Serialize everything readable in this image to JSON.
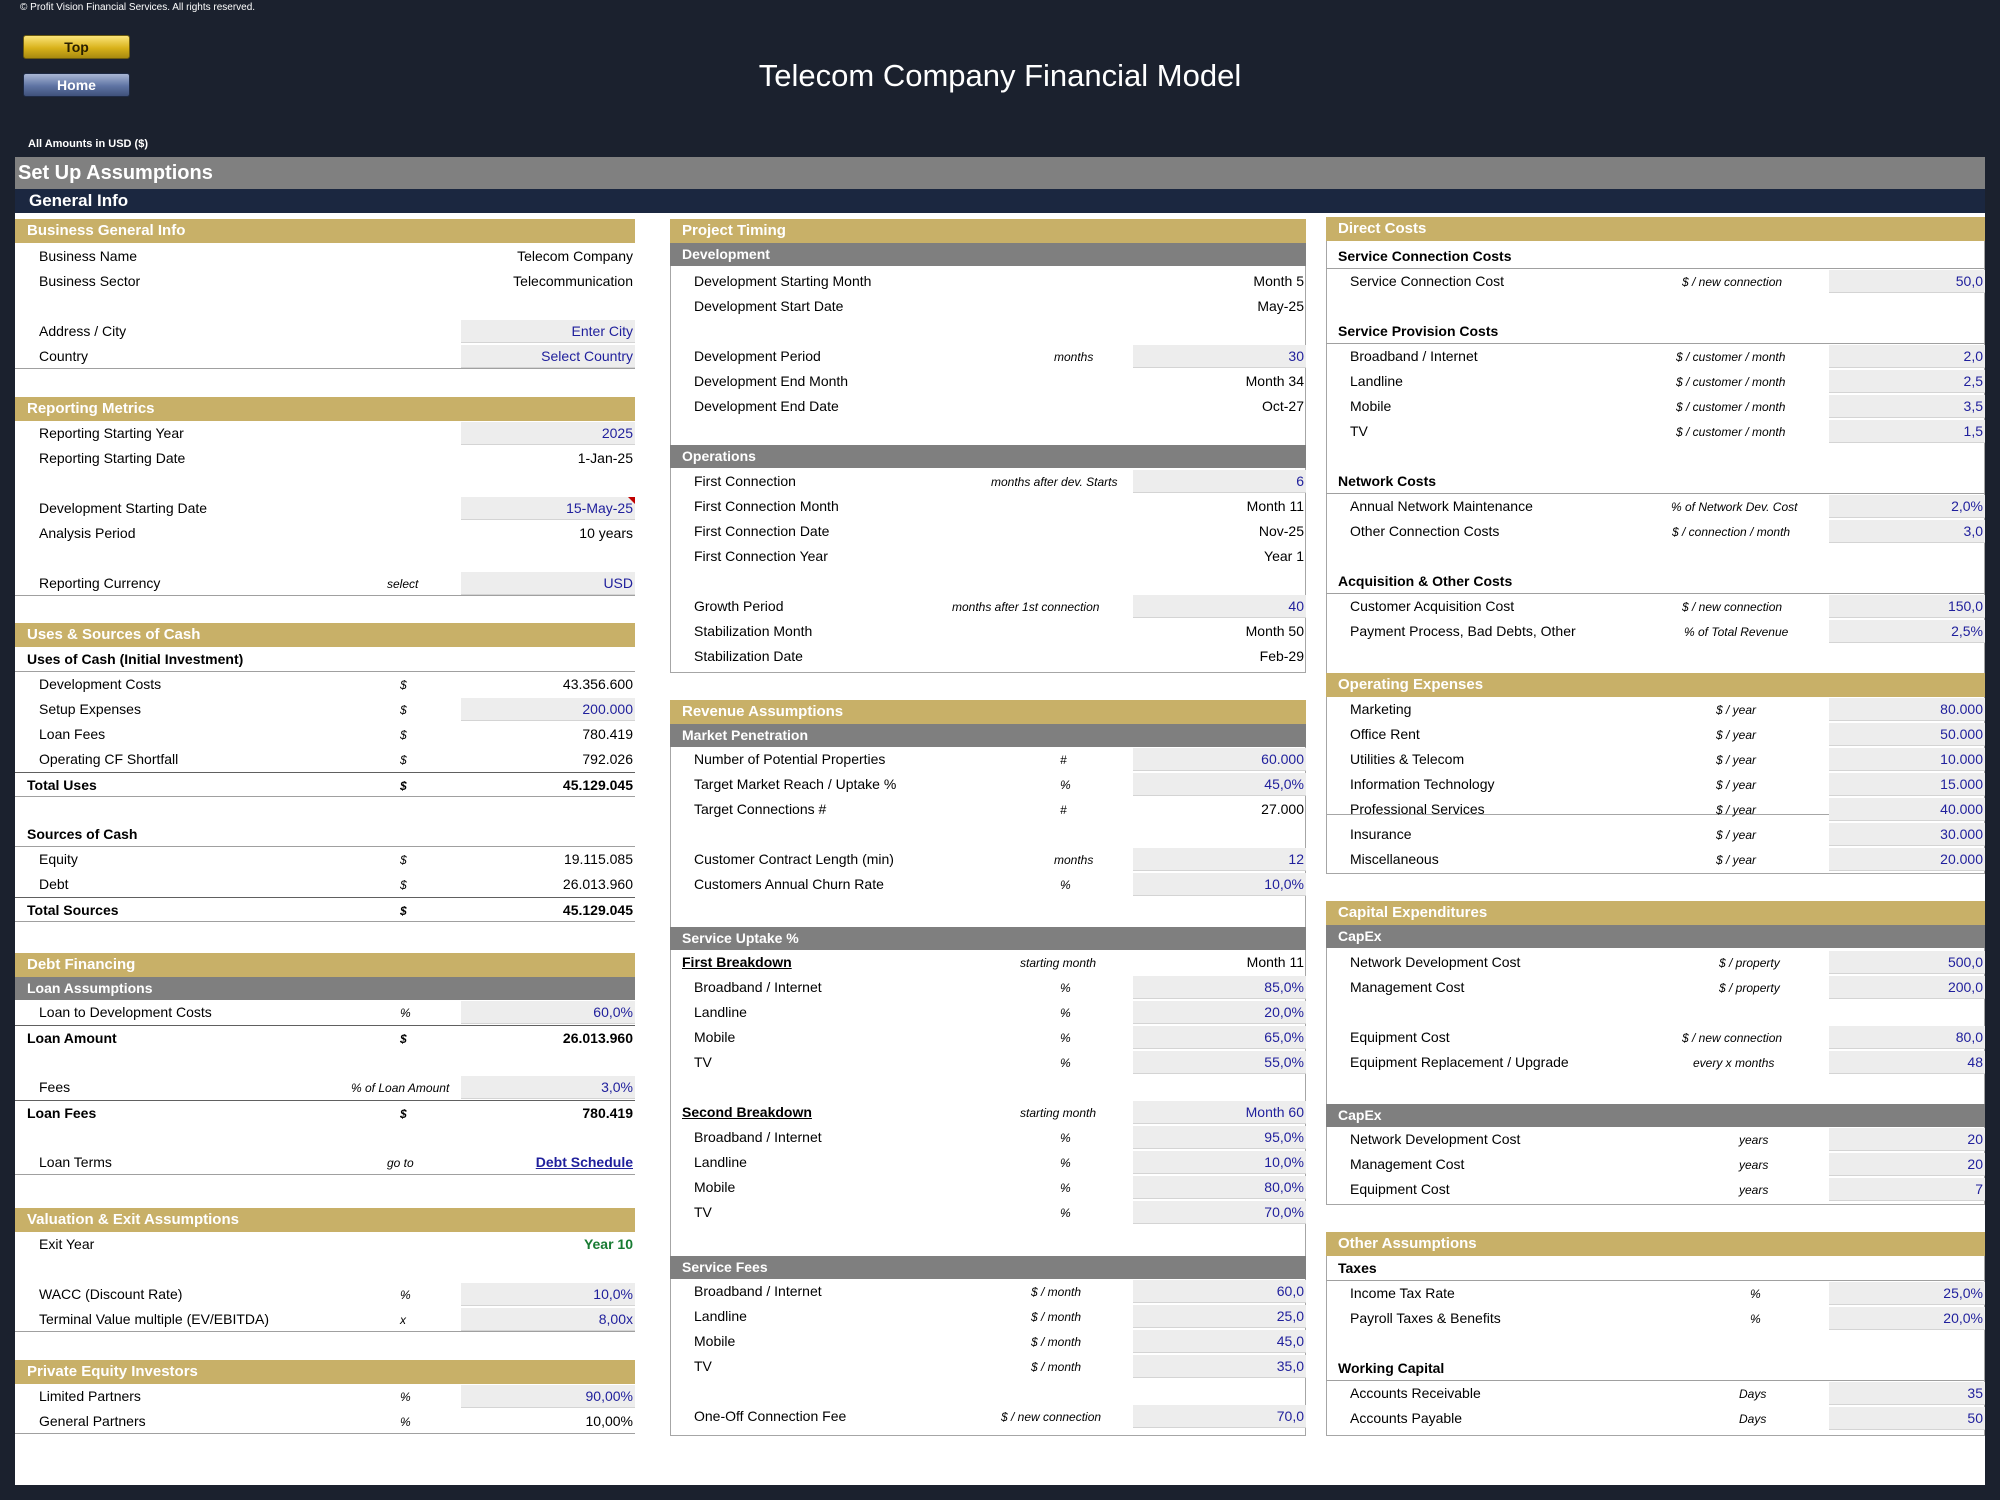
{
  "copyright": "© Profit Vision Financial Services. All rights reserved.",
  "nav": {
    "top": "Top",
    "home": "Home"
  },
  "title": "Telecom Company Financial Model",
  "amounts_label": "All Amounts in  USD ($)",
  "setup_title": "Set Up Assumptions",
  "general_title": "General Info",
  "col1": {
    "business": {
      "title": "Business General Info",
      "name_label": "Business Name",
      "name_value": "Telecom Company",
      "sector_label": "Business Sector",
      "sector_value": "Telecommunication",
      "city_label": "Address / City",
      "city_value": "Enter City",
      "country_label": "Country",
      "country_value": "Select Country"
    },
    "reporting": {
      "title": "Reporting Metrics",
      "year_label": "Reporting Starting Year",
      "year_value": "2025",
      "date_label": "Reporting Starting Date",
      "date_value": "1-Jan-25",
      "dev_label": "Development Starting Date",
      "dev_value": "15-May-25",
      "period_label": "Analysis Period",
      "period_value": "10 years",
      "currency_label": "Reporting Currency",
      "currency_unit": "select",
      "currency_value": "USD"
    },
    "cash": {
      "title": "Uses & Sources of Cash",
      "uses_title": "Uses of Cash (Initial Investment)",
      "uses": [
        {
          "label": "Development Costs",
          "unit": "$",
          "value": "43.356.600"
        },
        {
          "label": "Setup Expenses",
          "unit": "$",
          "value": "200.000"
        },
        {
          "label": "Loan Fees",
          "unit": "$",
          "value": "780.419"
        },
        {
          "label": "Operating CF Shortfall",
          "unit": "$",
          "value": "792.026"
        }
      ],
      "total_uses_label": "Total Uses",
      "total_uses_unit": "$",
      "total_uses_value": "45.129.045",
      "sources_title": "Sources of Cash",
      "sources": [
        {
          "label": "Equity",
          "unit": "$",
          "value": "19.115.085"
        },
        {
          "label": "Debt",
          "unit": "$",
          "value": "26.013.960"
        }
      ],
      "total_sources_label": "Total Sources",
      "total_sources_unit": "$",
      "total_sources_value": "45.129.045"
    },
    "debt": {
      "title": "Debt Financing",
      "loan_title": "Loan Assumptions",
      "ltd_label": "Loan to Development Costs",
      "ltd_unit": "%",
      "ltd_value": "60,0%",
      "amount_label": "Loan Amount",
      "amount_unit": "$",
      "amount_value": "26.013.960",
      "fees_label": "Fees",
      "fees_unit": "% of Loan Amount",
      "fees_value": "3,0%",
      "loanfees_label": "Loan Fees",
      "loanfees_unit": "$",
      "loanfees_value": "780.419",
      "terms_label": "Loan Terms",
      "terms_unit": "go to",
      "terms_link": "Debt Schedule"
    },
    "valuation": {
      "title": "Valuation & Exit Assumptions",
      "exit_label": "Exit Year",
      "exit_value": "Year 10",
      "wacc_label": "WACC (Discount Rate)",
      "wacc_unit": "%",
      "wacc_value": "10,0%",
      "tv_label": "Terminal Value multiple (EV/EBITDA)",
      "tv_unit": "x",
      "tv_value": "8,00x"
    },
    "pe": {
      "title": "Private Equity Investors",
      "lp_label": "Limited Partners",
      "lp_unit": "%",
      "lp_value": "90,00%",
      "gp_label": "General Partners",
      "gp_unit": "%",
      "gp_value": "10,00%"
    }
  },
  "col2": {
    "timing": {
      "title": "Project Timing",
      "dev_title": "Development",
      "dev_start_month_label": "Development Starting Month",
      "dev_start_month_value": "Month 5",
      "dev_start_date_label": "Development Start Date",
      "dev_start_date_value": "May-25",
      "dev_period_label": "Development Period",
      "dev_period_unit": "months",
      "dev_period_value": "30",
      "dev_end_month_label": "Development End Month",
      "dev_end_month_value": "Month 34",
      "dev_end_date_label": "Development End Date",
      "dev_end_date_value": "Oct-27",
      "ops_title": "Operations",
      "first_conn_label": "First Connection",
      "first_conn_unit": "months after dev. Starts",
      "first_conn_value": "6",
      "first_conn_month_label": "First Connection Month",
      "first_conn_month_value": "Month 11",
      "first_conn_date_label": "First Connection Date",
      "first_conn_date_value": "Nov-25",
      "first_conn_year_label": "First Connection Year",
      "first_conn_year_value": "Year 1",
      "growth_label": "Growth Period",
      "growth_unit": "months after 1st connection",
      "growth_value": "40",
      "stab_month_label": "Stabilization Month",
      "stab_month_value": "Month 50",
      "stab_date_label": "Stabilization Date",
      "stab_date_value": "Feb-29"
    },
    "revenue": {
      "title": "Revenue Assumptions",
      "mkt_title": "Market Penetration",
      "props_label": "Number of Potential Properties",
      "props_unit": "#",
      "props_value": "60.000",
      "reach_label": "Target Market Reach / Uptake %",
      "reach_unit": "%",
      "reach_value": "45,0%",
      "target_label": "Target Connections #",
      "target_unit": "#",
      "target_value": "27.000",
      "contract_label": "Customer Contract Length (min)",
      "contract_unit": "months",
      "contract_value": "12",
      "churn_label": "Customers Annual Churn Rate",
      "churn_unit": "%",
      "churn_value": "10,0%",
      "uptake_title": "Service Uptake %",
      "first_title": "First Breakdown",
      "first_unit": "starting month",
      "first_value": "Month 11",
      "first_rows": [
        {
          "label": "Broadband / Internet",
          "unit": "%",
          "value": "85,0%"
        },
        {
          "label": "Landline",
          "unit": "%",
          "value": "20,0%"
        },
        {
          "label": "Mobile",
          "unit": "%",
          "value": "65,0%"
        },
        {
          "label": "TV",
          "unit": "%",
          "value": "55,0%"
        }
      ],
      "second_title": "Second Breakdown",
      "second_unit": "starting month",
      "second_value": "Month 60",
      "second_rows": [
        {
          "label": "Broadband / Internet",
          "unit": "%",
          "value": "95,0%"
        },
        {
          "label": "Landline",
          "unit": "%",
          "value": "10,0%"
        },
        {
          "label": "Mobile",
          "unit": "%",
          "value": "80,0%"
        },
        {
          "label": "TV",
          "unit": "%",
          "value": "70,0%"
        }
      ],
      "fees_title": "Service Fees",
      "fees_rows": [
        {
          "label": "Broadband / Internet",
          "unit": "$ / month",
          "value": "60,0"
        },
        {
          "label": "Landline",
          "unit": "$ / month",
          "value": "25,0"
        },
        {
          "label": "Mobile",
          "unit": "$ / month",
          "value": "45,0"
        },
        {
          "label": "TV",
          "unit": "$ / month",
          "value": "35,0"
        }
      ],
      "oneoff_label": "One-Off Connection Fee",
      "oneoff_unit": "$ / new connection",
      "oneoff_value": "70,0"
    }
  },
  "col3": {
    "direct": {
      "title": "Direct Costs",
      "conn_title": "Service Connection Costs",
      "conn_label": "Service Connection Cost",
      "conn_unit": "$ / new connection",
      "conn_value": "50,0",
      "prov_title": "Service Provision Costs",
      "prov_rows": [
        {
          "label": "Broadband / Internet",
          "unit": "$ / customer / month",
          "value": "2,0"
        },
        {
          "label": "Landline",
          "unit": "$ / customer / month",
          "value": "2,5"
        },
        {
          "label": "Mobile",
          "unit": "$ / customer / month",
          "value": "3,5"
        },
        {
          "label": "TV",
          "unit": "$ / customer / month",
          "value": "1,5"
        }
      ],
      "net_title": "Network Costs",
      "net_rows": [
        {
          "label": "Annual Network Maintenance",
          "unit": "% of Network Dev. Cost",
          "value": "2,0%"
        },
        {
          "label": "Other Connection Costs",
          "unit": "$ / connection / month",
          "value": "3,0"
        }
      ],
      "acq_title": "Acquisition & Other Costs",
      "acq_rows": [
        {
          "label": "Customer Acquisition Cost",
          "unit": "$ / new connection",
          "value": "150,0"
        },
        {
          "label": "Payment Process, Bad Debts, Other",
          "unit": "% of Total Revenue",
          "value": "2,5%"
        }
      ]
    },
    "opex": {
      "title": "Operating Expenses",
      "rows": [
        {
          "label": "Marketing",
          "unit": "$ / year",
          "value": "80.000"
        },
        {
          "label": "Office Rent",
          "unit": "$ / year",
          "value": "50.000"
        },
        {
          "label": "Utilities & Telecom",
          "unit": "$ / year",
          "value": "10.000"
        },
        {
          "label": "Information Technology",
          "unit": "$ / year",
          "value": "15.000"
        },
        {
          "label": "Professional Services",
          "unit": "$ / year",
          "value": "40.000"
        },
        {
          "label": "Insurance",
          "unit": "$ / year",
          "value": "30.000"
        },
        {
          "label": "Miscellaneous",
          "unit": "$ / year",
          "value": "20.000"
        }
      ]
    },
    "capex": {
      "title": "Capital Expenditures",
      "capex1_title": "CapEx",
      "capex1_rows": [
        {
          "label": "Network Development Cost",
          "unit": "$ / property",
          "value": "500,0"
        },
        {
          "label": "Management Cost",
          "unit": "$ / property",
          "value": "200,0"
        }
      ],
      "capex1b_rows": [
        {
          "label": "Equipment Cost",
          "unit": "$ / new connection",
          "value": "80,0"
        },
        {
          "label": "Equipment Replacement / Upgrade",
          "unit": "every x months",
          "value": "48"
        }
      ],
      "capex2_title": "CapEx",
      "capex2_rows": [
        {
          "label": "Network Development Cost",
          "unit": "years",
          "value": "20"
        },
        {
          "label": "Management Cost",
          "unit": "years",
          "value": "20"
        },
        {
          "label": "Equipment Cost",
          "unit": "years",
          "value": "7"
        }
      ]
    },
    "other": {
      "title": "Other Assumptions",
      "taxes_title": "Taxes",
      "tax_rows": [
        {
          "label": "Income Tax Rate",
          "unit": "%",
          "value": "25,0%"
        },
        {
          "label": "Payroll Taxes & Benefits",
          "unit": "%",
          "value": "20,0%"
        }
      ],
      "wc_title": "Working Capital",
      "wc_rows": [
        {
          "label": "Accounts Receivable",
          "unit": "Days",
          "value": "35"
        },
        {
          "label": "Accounts Payable",
          "unit": "Days",
          "value": "50"
        }
      ]
    }
  }
}
